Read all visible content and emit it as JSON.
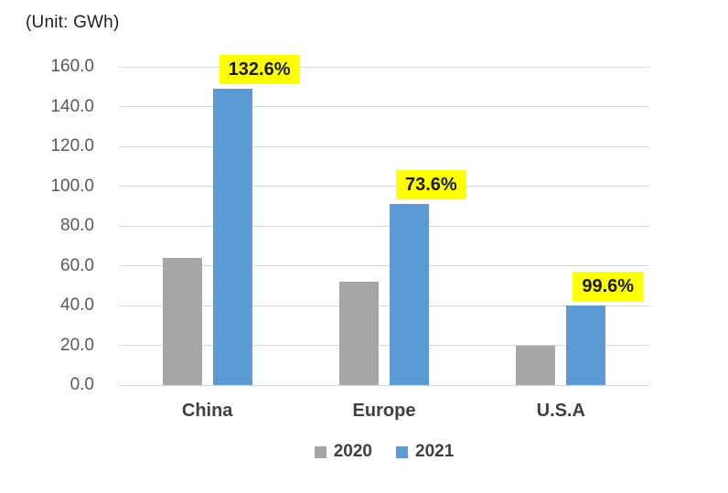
{
  "chart_data": {
    "type": "bar",
    "title": "(Unit: GWh)",
    "unit": "GWh",
    "categories": [
      "China",
      "Europe",
      "U.S.A"
    ],
    "series": [
      {
        "name": "2020",
        "color": "#A6A6A6",
        "values": [
          64,
          52,
          20
        ]
      },
      {
        "name": "2021",
        "color": "#5B9BD5",
        "values": [
          149,
          91,
          40
        ]
      }
    ],
    "growth_labels": [
      {
        "text": "132.6%",
        "bg": "#FFFF00"
      },
      {
        "text": "73.6%",
        "bg": "#FFFF00"
      },
      {
        "text": "99.6%",
        "bg": "#FFFF00"
      }
    ],
    "xlabel": "",
    "ylabel": "",
    "ylim": [
      0,
      160
    ],
    "ytick_values": [
      160,
      140,
      120,
      100,
      80,
      60,
      40,
      20,
      0
    ],
    "yticks": [
      "160.0",
      "140.0",
      "120.0",
      "100.0",
      "80.0",
      "60.0",
      "40.0",
      "20.0",
      "0.0"
    ],
    "grid": true,
    "gridline_color": "#D9D9D9",
    "legend_position": "bottom"
  }
}
